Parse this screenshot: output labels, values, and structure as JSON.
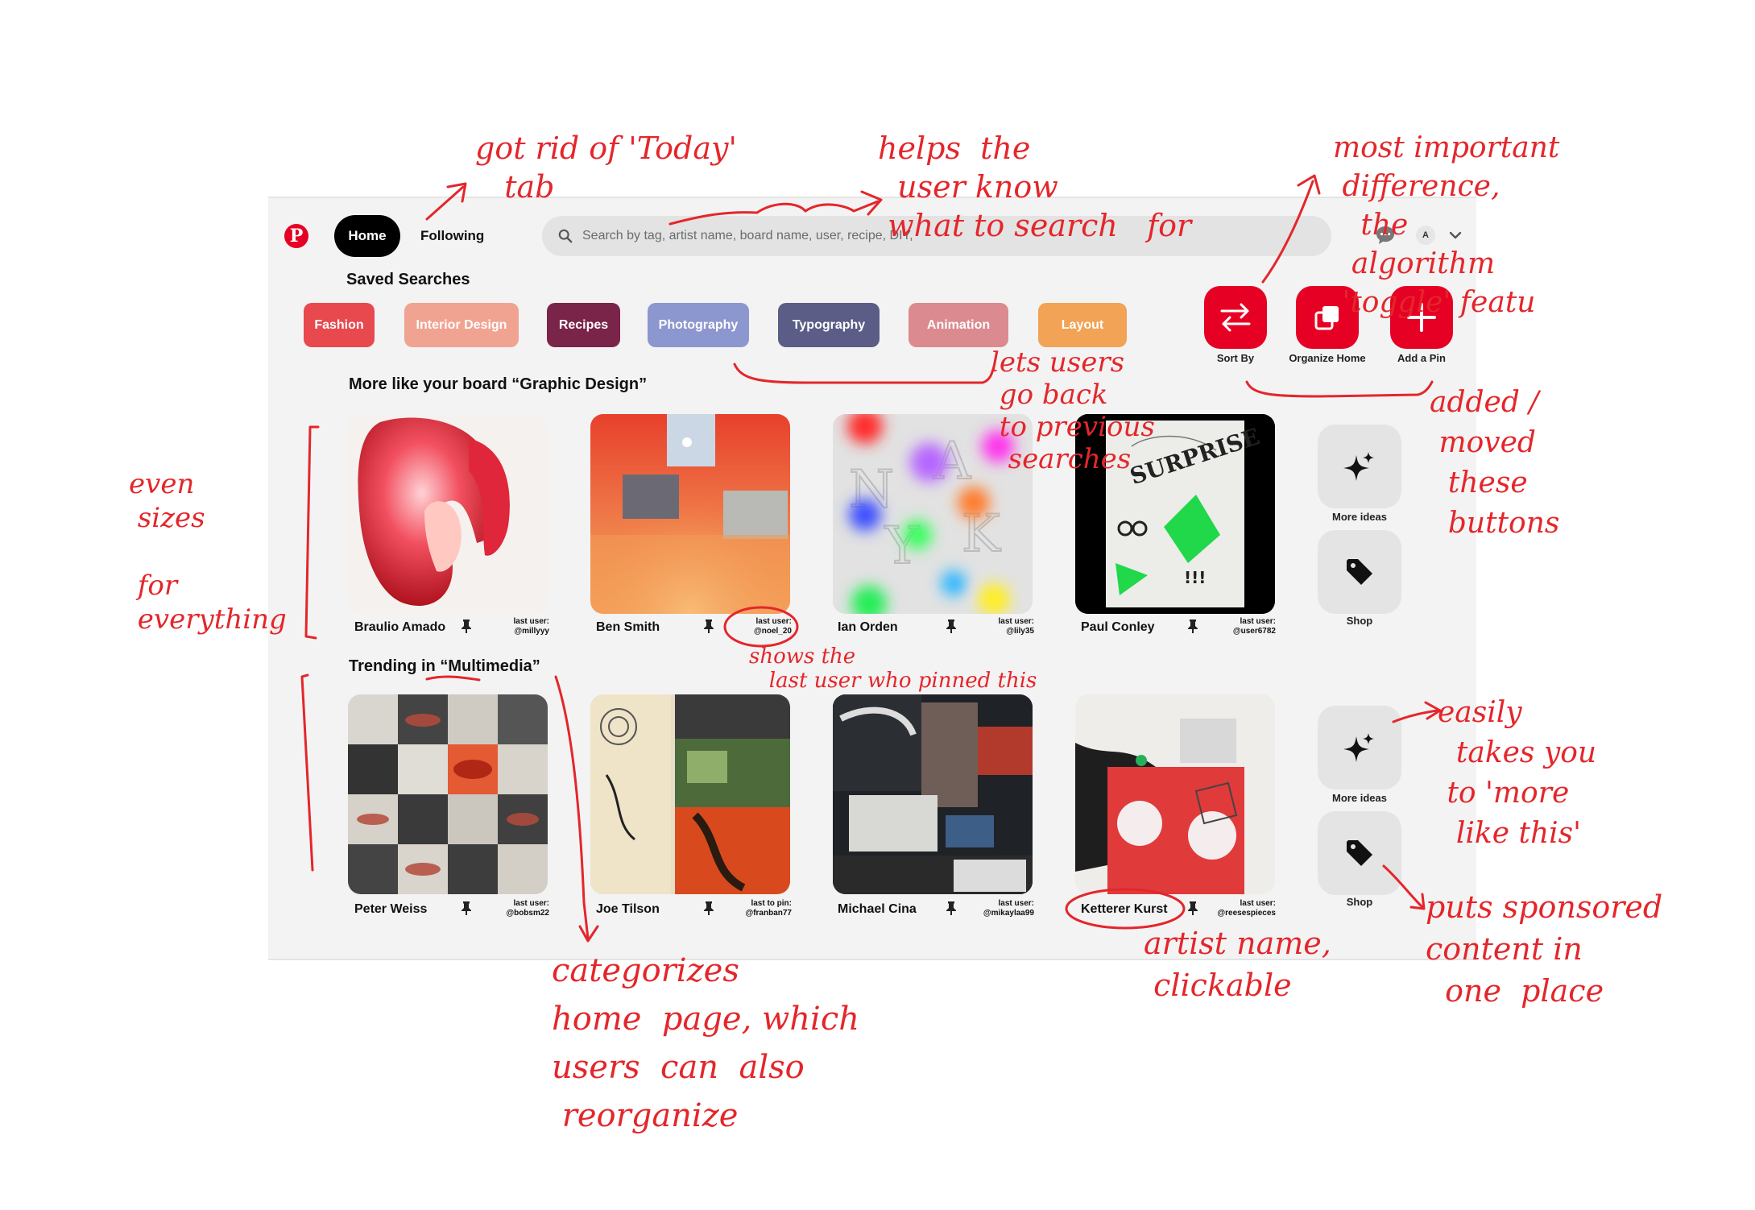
{
  "header": {
    "logo": "P",
    "home_label": "Home",
    "following_label": "Following",
    "search_placeholder": "Search by tag, artist name, board name, user, recipe, DIY,",
    "avatar_initial": "A"
  },
  "saved": {
    "title": "Saved Searches",
    "chips": [
      {
        "label": "Fashion",
        "color": "#e8494e"
      },
      {
        "label": "Interior Design",
        "color": "#f1a391"
      },
      {
        "label": "Recipes",
        "color": "#7a2449"
      },
      {
        "label": "Photography",
        "color": "#8c97cf"
      },
      {
        "label": "Typography",
        "color": "#5b5d87"
      },
      {
        "label": "Animation",
        "color": "#db8b8f"
      },
      {
        "label": "Layout",
        "color": "#f2a355"
      }
    ]
  },
  "actions": [
    {
      "label": "Sort By",
      "icon": "swap-arrows-icon"
    },
    {
      "label": "Organize Home",
      "icon": "stack-squares-icon"
    },
    {
      "label": "Add a Pin",
      "icon": "plus-icon"
    }
  ],
  "sections": [
    {
      "title": "More like your board “Graphic Design”",
      "pins": [
        {
          "artist": "Braulio Amado",
          "meta_label": "last user:",
          "handle": "@millyyy"
        },
        {
          "artist": "Ben Smith",
          "meta_label": "last user:",
          "handle": "@noel_20"
        },
        {
          "artist": "Ian Orden",
          "meta_label": "last user:",
          "handle": "@lily35"
        },
        {
          "artist": "Paul Conley",
          "meta_label": "last user:",
          "handle": "@user6782"
        }
      ],
      "side": {
        "more": "More ideas",
        "shop": "Shop"
      }
    },
    {
      "title": "Trending in “Multimedia”",
      "pins": [
        {
          "artist": "Peter Weiss",
          "meta_label": "last user:",
          "handle": "@bobsm22"
        },
        {
          "artist": "Joe Tilson",
          "meta_label": "last to pin:",
          "handle": "@franban77"
        },
        {
          "artist": "Michael Cina",
          "meta_label": "last user:",
          "handle": "@mikaylaa99"
        },
        {
          "artist": "Ketterer Kurst",
          "meta_label": "last user:",
          "handle": "@reesespieces"
        }
      ],
      "side": {
        "more": "More ideas",
        "shop": "Shop"
      }
    }
  ],
  "poster_text": {
    "surprise": "SURPRISE",
    "bang": "!!!",
    "letters": "A N K Y"
  },
  "annotations": {
    "today": "got rid of 'Today'\n   tab",
    "search": "helps  the\n  user know\n what to search   for",
    "important": "most important\n difference,\n   the\n  algorithm\n 'toggle' featu",
    "previous": "lets users\n go back\n to previous\n  searches",
    "added": "added /\n moved\n  these\n  buttons",
    "even": "even\n sizes\n\n for\n everything",
    "lastuser": "shows the\n   last user who pinned this",
    "moreideas": "easily\n  takes you\n to 'more\n  like this'",
    "categorizes": "categorizes\nhome  page, which\nusers  can  also\n reorganize",
    "artistname": "artist name,\n clickable",
    "sponsored": "puts sponsored\ncontent in\n  one  place"
  },
  "colors": {
    "brand": "#e60023",
    "ink": "#e4262b"
  }
}
